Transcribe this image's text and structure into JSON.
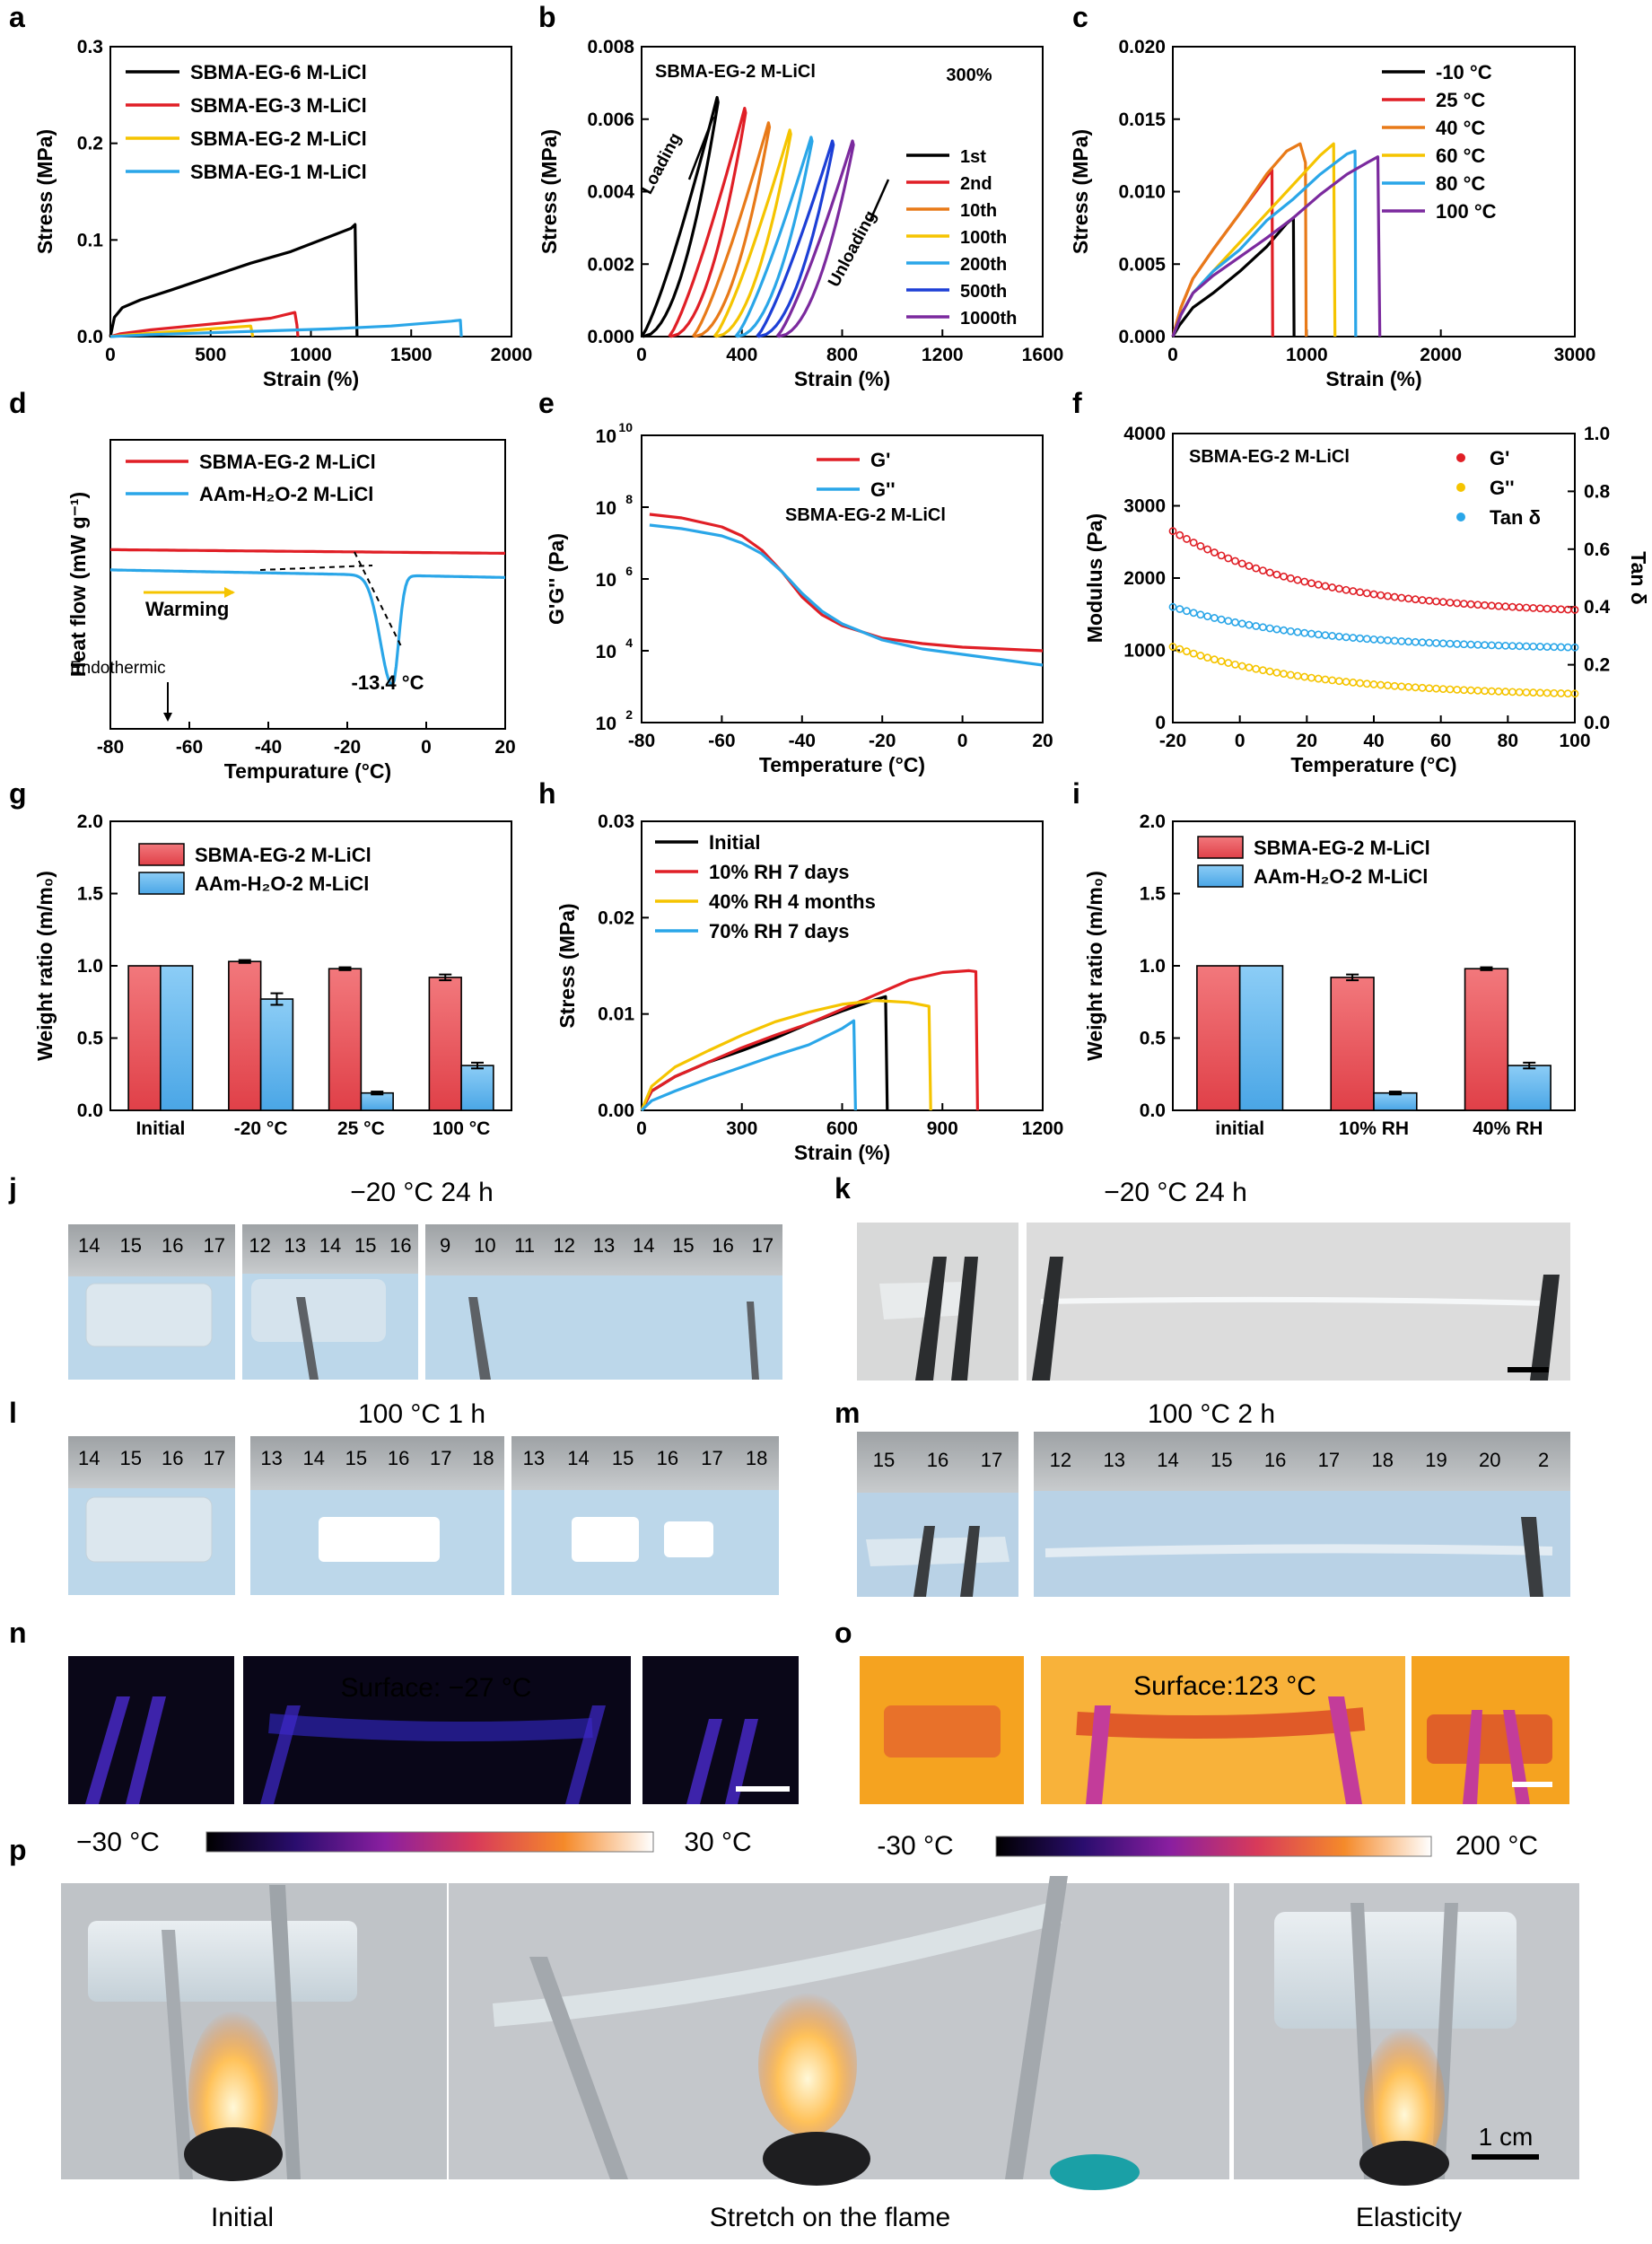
{
  "chart_data": [
    {
      "id": "a",
      "type": "line",
      "panel_letter": "a",
      "xlabel": "Strain (%)",
      "ylabel": "Stress (MPa)",
      "xlim": [
        0,
        2000
      ],
      "ylim": [
        0,
        0.3
      ],
      "xticks": [
        "0",
        "500",
        "1000",
        "1500",
        "2000"
      ],
      "yticks": [
        "0.0",
        "0.1",
        "0.2",
        "0.3"
      ],
      "series": [
        {
          "name": "SBMA-EG-6 M-LiCl",
          "color": "#000000",
          "x": [
            0,
            20,
            60,
            150,
            300,
            500,
            700,
            900,
            1100,
            1200,
            1220,
            1225,
            1230
          ],
          "y": [
            0,
            0.02,
            0.03,
            0.038,
            0.048,
            0.062,
            0.076,
            0.088,
            0.104,
            0.112,
            0.116,
            0.05,
            0
          ]
        },
        {
          "name": "SBMA-EG-3 M-LiCl",
          "color": "#e01f26",
          "x": [
            0,
            50,
            200,
            400,
            600,
            800,
            920,
            930,
            935
          ],
          "y": [
            0,
            0.003,
            0.007,
            0.011,
            0.015,
            0.019,
            0.025,
            0.012,
            0
          ]
        },
        {
          "name": "SBMA-EG-2 M-LiCl",
          "color": "#f5c400",
          "x": [
            0,
            100,
            300,
            500,
            700,
            710
          ],
          "y": [
            0,
            0.002,
            0.005,
            0.008,
            0.011,
            0
          ]
        },
        {
          "name": "SBMA-EG-1 M-LiCl",
          "color": "#2aa6e8",
          "x": [
            0,
            200,
            500,
            800,
            1100,
            1400,
            1700,
            1745,
            1750
          ],
          "y": [
            0,
            0.002,
            0.004,
            0.006,
            0.008,
            0.011,
            0.016,
            0.017,
            0
          ]
        }
      ]
    },
    {
      "id": "b",
      "type": "line",
      "panel_letter": "b",
      "xlabel": "Strain (%)",
      "ylabel": "Stress (MPa)",
      "xlim": [
        0,
        1600
      ],
      "ylim": [
        0,
        0.008
      ],
      "xticks": [
        "0",
        "400",
        "800",
        "1200",
        "1600"
      ],
      "yticks": [
        "0.000",
        "0.002",
        "0.004",
        "0.006",
        "0.008"
      ],
      "title": "SBMA-EG-2 M-LiCl",
      "annotation": "300%",
      "label_loading": "Loading",
      "label_unloading": "Unloading",
      "series": [
        {
          "name": "1st",
          "color": "#000000",
          "offset": 0,
          "peak": 0.0066
        },
        {
          "name": "2nd",
          "color": "#e01f26",
          "offset": 110,
          "peak": 0.0063
        },
        {
          "name": "10th",
          "color": "#e87a18",
          "offset": 205,
          "peak": 0.0059
        },
        {
          "name": "100th",
          "color": "#f5c400",
          "offset": 290,
          "peak": 0.0057
        },
        {
          "name": "200th",
          "color": "#2aa6e8",
          "offset": 375,
          "peak": 0.0055
        },
        {
          "name": "500th",
          "color": "#1d3fd6",
          "offset": 460,
          "peak": 0.0054
        },
        {
          "name": "1000th",
          "color": "#7b2a9e",
          "offset": 540,
          "peak": 0.0054
        }
      ]
    },
    {
      "id": "c",
      "type": "line",
      "panel_letter": "c",
      "xlabel": "Strain (%)",
      "ylabel": "Stress (MPa)",
      "xlim": [
        0,
        3000
      ],
      "ylim": [
        0,
        0.02
      ],
      "xticks": [
        "0",
        "1000",
        "2000",
        "3000"
      ],
      "yticks": [
        "0.000",
        "0.005",
        "0.010",
        "0.015",
        "0.020"
      ],
      "series": [
        {
          "name": "-10 °C",
          "color": "#000000",
          "x": [
            0,
            50,
            150,
            300,
            500,
            700,
            850,
            900,
            905
          ],
          "y": [
            0,
            0.0008,
            0.002,
            0.003,
            0.0045,
            0.0062,
            0.0078,
            0.0082,
            0
          ]
        },
        {
          "name": "25 °C",
          "color": "#e01f26",
          "x": [
            0,
            60,
            150,
            300,
            500,
            700,
            740,
            745
          ],
          "y": [
            0,
            0.002,
            0.004,
            0.006,
            0.0085,
            0.011,
            0.0115,
            0
          ]
        },
        {
          "name": "40 °C",
          "color": "#e87a18",
          "x": [
            0,
            60,
            150,
            300,
            500,
            700,
            850,
            950,
            990,
            995
          ],
          "y": [
            0,
            0.002,
            0.004,
            0.006,
            0.0085,
            0.0112,
            0.0128,
            0.0133,
            0.012,
            0
          ]
        },
        {
          "name": "60 °C",
          "color": "#f5c400",
          "x": [
            0,
            60,
            150,
            300,
            500,
            700,
            900,
            1100,
            1200,
            1210
          ],
          "y": [
            0,
            0.0015,
            0.003,
            0.0045,
            0.0065,
            0.0085,
            0.0105,
            0.0125,
            0.0133,
            0
          ]
        },
        {
          "name": "80 °C",
          "color": "#2aa6e8",
          "x": [
            0,
            60,
            150,
            300,
            500,
            700,
            900,
            1100,
            1300,
            1360,
            1365
          ],
          "y": [
            0,
            0.0015,
            0.003,
            0.0045,
            0.006,
            0.008,
            0.0095,
            0.0112,
            0.0126,
            0.0128,
            0
          ]
        },
        {
          "name": "100 °C",
          "color": "#7b2a9e",
          "x": [
            0,
            60,
            150,
            300,
            500,
            700,
            900,
            1100,
            1300,
            1450,
            1530,
            1545
          ],
          "y": [
            0,
            0.0015,
            0.003,
            0.0042,
            0.0055,
            0.0068,
            0.0082,
            0.0098,
            0.0112,
            0.012,
            0.0124,
            0
          ]
        }
      ]
    },
    {
      "id": "d",
      "type": "line",
      "panel_letter": "d",
      "xlabel": "Tempurature (°C)",
      "ylabel": "Heat flow (mW g⁻¹)",
      "xlim": [
        -80,
        25
      ],
      "xticks": [
        "-80",
        "-60",
        "-40",
        "-20",
        "0",
        "20"
      ],
      "series": [
        {
          "name": "SBMA-EG-2 M-LiCl",
          "color": "#e01f26"
        },
        {
          "name": "AAm-H₂O-2 M-LiCl",
          "color": "#2aa6e8"
        }
      ],
      "label_warming": "Warming",
      "label_endothermic": "Endothermic",
      "peak_label": "-13.4 °C"
    },
    {
      "id": "e",
      "type": "line",
      "panel_letter": "e",
      "xlabel": "Temperature (°C)",
      "ylabel": "G'G'' (Pa)",
      "xlim": [
        -80,
        20
      ],
      "xticks": [
        "-80",
        "-60",
        "-40",
        "-20",
        "0",
        "20"
      ],
      "ylim_log": [
        2,
        10
      ],
      "yticks": [
        "10",
        "10",
        "10",
        "10",
        "10"
      ],
      "yexp": [
        "2",
        "4",
        "6",
        "8",
        "10"
      ],
      "title": "SBMA-EG-2 M-LiCl",
      "series": [
        {
          "name": "G'",
          "color": "#e01f26",
          "x": [
            -78,
            -70,
            -60,
            -55,
            -50,
            -45,
            -40,
            -35,
            -30,
            -20,
            -10,
            0,
            10,
            20
          ],
          "y": [
            7.8,
            7.7,
            7.45,
            7.2,
            6.8,
            6.2,
            5.5,
            5.0,
            4.7,
            4.35,
            4.2,
            4.1,
            4.05,
            4.0
          ]
        },
        {
          "name": "G''",
          "color": "#2aa6e8",
          "x": [
            -78,
            -70,
            -60,
            -55,
            -50,
            -45,
            -40,
            -35,
            -30,
            -20,
            -10,
            0,
            10,
            20
          ],
          "y": [
            7.5,
            7.4,
            7.2,
            7.0,
            6.7,
            6.2,
            5.6,
            5.1,
            4.75,
            4.3,
            4.05,
            3.9,
            3.75,
            3.6
          ]
        }
      ]
    },
    {
      "id": "f",
      "type": "scatter",
      "panel_letter": "f",
      "xlabel": "Temperature (°C)",
      "ylabel": "Modulus (Pa)",
      "ylabel2": "Tan δ",
      "xlim": [
        -20,
        100
      ],
      "ylim": [
        0,
        4000
      ],
      "ylim2": [
        0,
        1.0
      ],
      "xticks": [
        "-20",
        "0",
        "20",
        "40",
        "60",
        "80",
        "100"
      ],
      "yticks": [
        "0",
        "1000",
        "2000",
        "3000",
        "4000"
      ],
      "yticks2": [
        "0.0",
        "0.2",
        "0.4",
        "0.6",
        "0.8",
        "1.0"
      ],
      "title": "SBMA-EG-2 M-LiCl",
      "series": [
        {
          "name": "G'",
          "color": "#e01f26",
          "start": 2650,
          "end": 1560
        },
        {
          "name": "G''",
          "color": "#f5c400",
          "start": 1050,
          "end": 400
        },
        {
          "name": "Tan δ",
          "color": "#2aa6e8",
          "start": 0.4,
          "end": 0.26,
          "axis": "right"
        }
      ]
    },
    {
      "id": "g",
      "type": "bar",
      "panel_letter": "g",
      "ylabel": "Weight ratio (m/m₀)",
      "ylim": [
        0,
        2.0
      ],
      "yticks": [
        "0.0",
        "0.5",
        "1.0",
        "1.5",
        "2.0"
      ],
      "categories": [
        "Initial",
        "-20 °C",
        "25 °C",
        "100 °C"
      ],
      "series": [
        {
          "name": "SBMA-EG-2 M-LiCl",
          "color": "#e8555a",
          "values": [
            1.0,
            1.03,
            0.98,
            0.92
          ],
          "err": [
            0,
            0.01,
            0.01,
            0.02
          ]
        },
        {
          "name": "AAm-H₂O-2 M-LiCl",
          "color": "#6ab8ef",
          "values": [
            1.0,
            0.77,
            0.12,
            0.31
          ],
          "err": [
            0,
            0.04,
            0.01,
            0.02
          ]
        }
      ]
    },
    {
      "id": "h",
      "type": "line",
      "panel_letter": "h",
      "xlabel": "Strain (%)",
      "ylabel": "Stress (MPa)",
      "xlim": [
        0,
        1200
      ],
      "ylim": [
        0,
        0.03
      ],
      "xticks": [
        "0",
        "300",
        "600",
        "900",
        "1200"
      ],
      "yticks": [
        "0.00",
        "0.01",
        "0.02",
        "0.03"
      ],
      "series": [
        {
          "name": "Initial",
          "color": "#000000",
          "x": [
            0,
            30,
            100,
            200,
            300,
            400,
            500,
            600,
            700,
            730,
            735
          ],
          "y": [
            0,
            0.002,
            0.0035,
            0.005,
            0.0062,
            0.0075,
            0.009,
            0.0103,
            0.0115,
            0.0118,
            0
          ]
        },
        {
          "name": "10% RH 7 days",
          "color": "#e01f26",
          "x": [
            0,
            30,
            100,
            200,
            300,
            400,
            500,
            600,
            700,
            800,
            900,
            980,
            1000,
            1005
          ],
          "y": [
            0,
            0.002,
            0.0035,
            0.005,
            0.0065,
            0.0078,
            0.009,
            0.0105,
            0.012,
            0.0135,
            0.0143,
            0.0145,
            0.0144,
            0
          ]
        },
        {
          "name": "40% RH 4 months",
          "color": "#f5c400",
          "x": [
            0,
            30,
            100,
            200,
            300,
            400,
            500,
            600,
            700,
            800,
            860,
            865
          ],
          "y": [
            0,
            0.0025,
            0.0045,
            0.0062,
            0.0078,
            0.0092,
            0.0102,
            0.011,
            0.0114,
            0.0112,
            0.0108,
            0
          ]
        },
        {
          "name": "70% RH 7 days",
          "color": "#2aa6e8",
          "x": [
            0,
            30,
            100,
            200,
            300,
            400,
            500,
            600,
            635,
            640
          ],
          "y": [
            0,
            0.001,
            0.002,
            0.0033,
            0.0045,
            0.0057,
            0.0068,
            0.0085,
            0.0093,
            0
          ]
        }
      ]
    },
    {
      "id": "i",
      "type": "bar",
      "panel_letter": "i",
      "ylabel": "Weight ratio (m/m₀)",
      "ylim": [
        0,
        2.0
      ],
      "yticks": [
        "0.0",
        "0.5",
        "1.0",
        "1.5",
        "2.0"
      ],
      "categories": [
        "initial",
        "10% RH",
        "40% RH"
      ],
      "series": [
        {
          "name": "SBMA-EG-2 M-LiCl",
          "color": "#e8555a",
          "values": [
            1.0,
            0.92,
            0.98
          ],
          "err": [
            0,
            0.02,
            0.01
          ]
        },
        {
          "name": "AAm-H₂O-2 M-LiCl",
          "color": "#6ab8ef",
          "values": [
            1.0,
            0.12,
            0.31
          ],
          "err": [
            0,
            0.01,
            0.02
          ]
        }
      ]
    }
  ],
  "photos": {
    "j": {
      "letter": "j",
      "caption": "−20 °C 24 h",
      "ruler_a": [
        "14",
        "15",
        "16",
        "17"
      ],
      "ruler_b": [
        "12",
        "13",
        "14",
        "15",
        "16"
      ],
      "ruler_c": [
        "9",
        "10",
        "11",
        "12",
        "13",
        "14",
        "15",
        "16",
        "17"
      ]
    },
    "k": {
      "letter": "k",
      "caption": "−20 °C 24 h"
    },
    "l": {
      "letter": "l",
      "caption": "100 °C 1 h",
      "ruler_a": [
        "14",
        "15",
        "16",
        "17"
      ],
      "ruler_b": [
        "13",
        "14",
        "15",
        "16",
        "17",
        "18"
      ],
      "ruler_c": [
        "13",
        "14",
        "15",
        "16",
        "17",
        "18"
      ]
    },
    "m": {
      "letter": "m",
      "caption": "100 °C 2 h",
      "ruler_a": [
        "15",
        "16",
        "17"
      ],
      "ruler_b": [
        "12",
        "13",
        "14",
        "15",
        "16",
        "17",
        "18",
        "19",
        "20",
        "2"
      ]
    },
    "n": {
      "letter": "n",
      "surface": "Surface: −27 °C",
      "scale_min": "−30 °C",
      "scale_max": "30 °C"
    },
    "o": {
      "letter": "o",
      "surface": "Surface:123 °C",
      "scale_min": "-30 °C",
      "scale_max": "200 °C"
    },
    "p": {
      "letter": "p",
      "caption_left": "Initial",
      "caption_mid": "Stretch on the flame",
      "caption_right": "Elasticity",
      "scale": "1 cm"
    }
  }
}
